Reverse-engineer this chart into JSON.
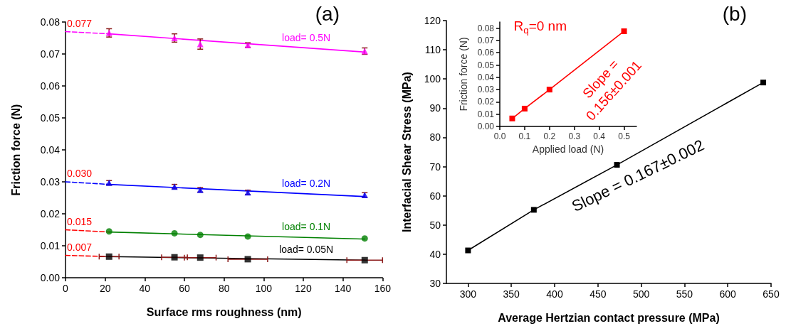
{
  "chart_data": [
    {
      "type": "scatter",
      "title": "(a)",
      "xlabel": "Surface rms roughness (nm)",
      "ylabel": "Friction force (N)",
      "xlim": [
        0,
        160
      ],
      "ylim": [
        0,
        0.08
      ],
      "xticks": [
        0,
        20,
        40,
        60,
        80,
        100,
        120,
        140,
        160
      ],
      "yticks": [
        {
          "value": 0,
          "label": "0.00"
        },
        {
          "value": 0.01,
          "label": "0.01"
        },
        {
          "value": 0.02,
          "label": "0.02"
        },
        {
          "value": 0.03,
          "label": "0.03"
        },
        {
          "value": 0.04,
          "label": "0.04"
        },
        {
          "value": 0.05,
          "label": "0.05"
        },
        {
          "value": 0.06,
          "label": "0.06"
        },
        {
          "value": 0.07,
          "label": "0.07"
        },
        {
          "value": 0.08,
          "label": "0.08"
        }
      ],
      "grid": false,
      "series": [
        {
          "name": "load= 0.5N",
          "color": "#ff00ff",
          "marker": "triangle",
          "x": [
            22,
            55,
            68,
            92,
            151
          ],
          "values": [
            0.0766,
            0.075,
            0.0731,
            0.0728,
            0.0709
          ],
          "errors": [
            0.0013,
            0.0013,
            0.0016,
            0.0007,
            0.001
          ]
        },
        {
          "name": "load= 0.2N",
          "color": "#0000ff",
          "marker": "triangle",
          "x": [
            22,
            55,
            68,
            92,
            151
          ],
          "values": [
            0.0297,
            0.0285,
            0.0275,
            0.0267,
            0.0259
          ],
          "errors": [
            0.0007,
            0.0007,
            0.0007,
            0.0007,
            0.0007
          ]
        },
        {
          "name": "load= 0.1N",
          "color": "#008000",
          "marker": "circle",
          "x": [
            22,
            55,
            68,
            92,
            151
          ],
          "values": [
            0.0145,
            0.0139,
            0.0134,
            0.0129,
            0.0123
          ]
        },
        {
          "name": "load= 0.05N",
          "color": "#000000",
          "marker": "square",
          "x": [
            22,
            55,
            68,
            92,
            151
          ],
          "values": [
            0.0066,
            0.0064,
            0.0063,
            0.0058,
            0.0055
          ],
          "xerrors": [
            5,
            6.5,
            8,
            10,
            9
          ]
        },
        {
          "type": "line",
          "color": "#ff00ff",
          "marker": "none",
          "line_style": "solid",
          "x": [
            22,
            151
          ],
          "values": [
            0.0763,
            0.0706
          ]
        },
        {
          "type": "line",
          "color": "#0000ff",
          "marker": "none",
          "line_style": "solid",
          "x": [
            22,
            151
          ],
          "values": [
            0.0292,
            0.0254
          ]
        },
        {
          "type": "line",
          "color": "#008000",
          "marker": "none",
          "line_style": "solid",
          "x": [
            22,
            151
          ],
          "values": [
            0.0143,
            0.0121
          ]
        },
        {
          "type": "line",
          "color": "#000000",
          "marker": "none",
          "line_style": "solid",
          "x": [
            22,
            151
          ],
          "values": [
            0.0066,
            0.0055
          ]
        },
        {
          "type": "line",
          "color": "#ff00ff",
          "marker": "none",
          "line_style": "dashed",
          "x": [
            0,
            22
          ],
          "values": [
            0.077,
            0.0763
          ],
          "value_labels": [
            "0.077",
            null
          ]
        },
        {
          "type": "line",
          "color": "#0000ff",
          "marker": "none",
          "line_style": "dashed",
          "x": [
            0,
            22
          ],
          "values": [
            0.03,
            0.0292
          ],
          "value_labels": [
            "0.030",
            null
          ]
        },
        {
          "type": "line",
          "color": "#ff0000",
          "marker": "none",
          "line_style": "dashed",
          "x": [
            0,
            22
          ],
          "values": [
            0.015,
            0.0143
          ],
          "value_labels": [
            "0.015",
            null
          ]
        },
        {
          "type": "line",
          "color": "#ff0000",
          "marker": "none",
          "line_style": "dashed",
          "x": [
            0,
            22
          ],
          "values": [
            0.007,
            0.0066
          ],
          "value_labels": [
            "0.007",
            null
          ]
        }
      ]
    },
    {
      "type": "line",
      "title": "(b)",
      "xlabel": "Average Hertzian contact pressure (MPa)",
      "ylabel": "Interfacial Shear Stress (MPa)",
      "xlim": [
        275,
        650
      ],
      "ylim": [
        30,
        120
      ],
      "xticks": [
        300,
        350,
        400,
        450,
        500,
        550,
        600,
        650
      ],
      "yticks": [
        30,
        40,
        50,
        60,
        70,
        80,
        90,
        100,
        110,
        120
      ],
      "grid": false,
      "marker": "square",
      "line_style": "solid",
      "series": [
        {
          "color": "#000000",
          "x": [
            300,
            376,
            472,
            641
          ],
          "values": [
            41.3,
            55.2,
            70.6,
            98.8
          ]
        }
      ],
      "annotations": [
        "Slope = 0.167±0.002"
      ]
    },
    {
      "type": "line",
      "xlabel": "Applied load (N)",
      "ylabel": "Friction force (N)",
      "xlim": [
        0,
        0.55
      ],
      "ylim": [
        0,
        0.085
      ],
      "xticks": [
        {
          "value": 0,
          "label": "0.0"
        },
        {
          "value": 0.1,
          "label": "0.1"
        },
        {
          "value": 0.2,
          "label": "0.2"
        },
        {
          "value": 0.3,
          "label": "0.3"
        },
        {
          "value": 0.4,
          "label": "0.4"
        },
        {
          "value": 0.5,
          "label": "0.5"
        }
      ],
      "yticks": [
        {
          "value": 0,
          "label": "0.00"
        },
        {
          "value": 0.01,
          "label": "0.01"
        },
        {
          "value": 0.02,
          "label": "0.02"
        },
        {
          "value": 0.03,
          "label": "0.03"
        },
        {
          "value": 0.04,
          "label": "0.04"
        },
        {
          "value": 0.05,
          "label": "0.05"
        },
        {
          "value": 0.06,
          "label": "0.06"
        },
        {
          "value": 0.07,
          "label": "0.07"
        },
        {
          "value": 0.08,
          "label": "0.08"
        }
      ],
      "grid": false,
      "marker": "square",
      "line_style": "solid",
      "series": [
        {
          "color": "#ff0000",
          "x": [
            0.05,
            0.1,
            0.2,
            0.5
          ],
          "values": [
            0.0065,
            0.0145,
            0.03,
            0.0775
          ]
        }
      ],
      "annotations": [
        "R$_{q}$=0 nm",
        "Slope =\n0.156±0.001"
      ]
    }
  ]
}
